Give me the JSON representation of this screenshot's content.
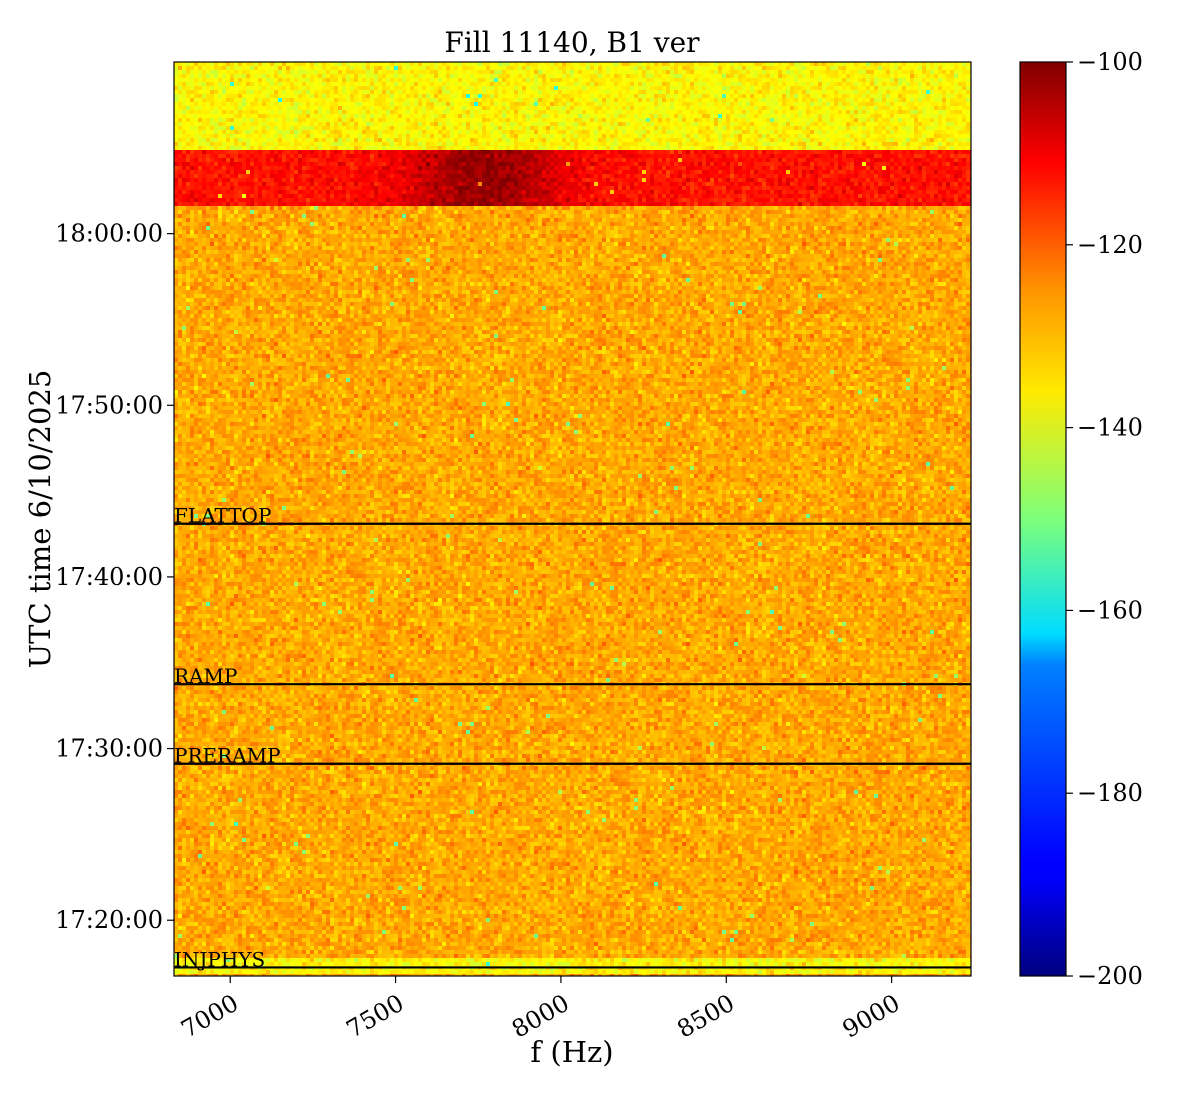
{
  "chart_data": {
    "type": "heatmap",
    "title": "Fill 11140, B1 ver",
    "xlabel": "f (Hz)",
    "ylabel": "UTC time 6/10/2025",
    "xlim": [
      6830,
      9240
    ],
    "ylim": [
      "17:16:45",
      "18:10:00"
    ],
    "x_ticks": [
      {
        "value": 7000,
        "label": "7000"
      },
      {
        "value": 7500,
        "label": "7500"
      },
      {
        "value": 8000,
        "label": "8000"
      },
      {
        "value": 8500,
        "label": "8500"
      },
      {
        "value": 9000,
        "label": "9000"
      }
    ],
    "y_ticks": [
      {
        "value": "17:20:00",
        "label": "17:20:00"
      },
      {
        "value": "17:30:00",
        "label": "17:30:00"
      },
      {
        "value": "17:40:00",
        "label": "17:40:00"
      },
      {
        "value": "17:50:00",
        "label": "17:50:00"
      },
      {
        "value": "18:00:00",
        "label": "18:00:00"
      }
    ],
    "colorbar": {
      "colormap": "jet",
      "range": [
        -200,
        -100
      ],
      "ticks": [
        {
          "value": -100,
          "label": "−100"
        },
        {
          "value": -120,
          "label": "−120"
        },
        {
          "value": -140,
          "label": "−140"
        },
        {
          "value": -160,
          "label": "−160"
        },
        {
          "value": -180,
          "label": "−180"
        },
        {
          "value": -200,
          "label": "−200"
        }
      ]
    },
    "bands": [
      {
        "from": "17:16:45",
        "to": "17:17:45",
        "level": -137,
        "noise": 6
      },
      {
        "from": "17:17:45",
        "to": "18:01:30",
        "level": -129,
        "noise": 6
      },
      {
        "from": "18:01:30",
        "to": "18:04:55",
        "level": -114,
        "noise": 5,
        "peak_f": 7770,
        "peak_level": -102
      },
      {
        "from": "18:04:55",
        "to": "18:10:00",
        "level": -137,
        "noise": 6
      }
    ],
    "annotations": [
      {
        "time": "17:43:06",
        "label": "FLATTOP"
      },
      {
        "time": "17:33:45",
        "label": "RAMP"
      },
      {
        "time": "17:29:07",
        "label": "PRERAMP"
      },
      {
        "time": "17:17:15",
        "label": "INJPHYS"
      }
    ]
  }
}
